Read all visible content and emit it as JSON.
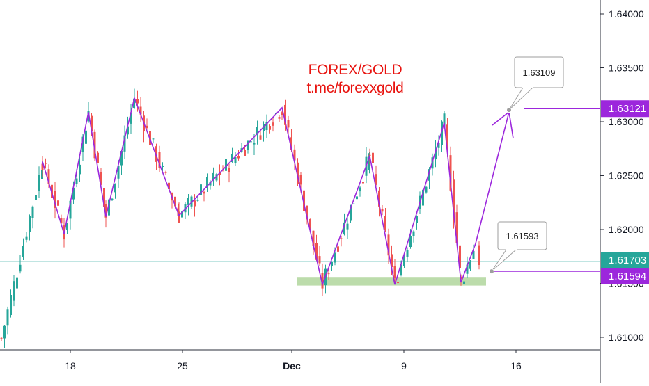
{
  "watermark": {
    "line1": "FOREX/GOLD",
    "line2": "t.me/forexxgold",
    "color": "#e8130f"
  },
  "colors": {
    "up": "#26a69a",
    "down": "#ef5350",
    "pattern": "#9c27dc",
    "last_price": "#26a69a",
    "support_zone": "#a5d08f",
    "price_line": "#80cbc4"
  },
  "chart_data": {
    "type": "candlestick",
    "symbol_hint": "price",
    "ylim": [
      1.6095,
      1.642
    ],
    "y_ticks": [
      "1.61000",
      "1.61500",
      "1.62000",
      "1.62500",
      "1.63000",
      "1.63500",
      "1.64000"
    ],
    "x_ticks": [
      {
        "label": "18",
        "bold": false
      },
      {
        "label": "25",
        "bold": false
      },
      {
        "label": "Dec",
        "bold": true
      },
      {
        "label": "9",
        "bold": false
      },
      {
        "label": "16",
        "bold": false
      }
    ],
    "last_price": "1.61703",
    "target_label": "1.63121",
    "second_label": "1.61594",
    "callouts": [
      {
        "label": "1.63109",
        "price": 1.63109
      },
      {
        "label": "1.61593",
        "price": 1.61593
      }
    ],
    "zigzag_pattern": [
      1.6263,
      1.6196,
      1.6309,
      1.6212,
      1.6322,
      1.6213,
      1.6313,
      1.6149,
      1.6268,
      1.6149,
      1.6299,
      1.6151,
      1.6187
    ],
    "projection_pattern": [
      1.6187,
      1.6309
    ],
    "support_zone": [
      1.6148,
      1.6156
    ],
    "candles_ohlc_sample_daily": [
      [
        1.6099,
        1.6108,
        1.6095,
        1.6103
      ],
      [
        1.6103,
        1.6168,
        1.6099,
        1.6165
      ],
      [
        1.6165,
        1.625,
        1.616,
        1.624
      ],
      [
        1.624,
        1.6262,
        1.6196,
        1.6205
      ],
      [
        1.6205,
        1.6309,
        1.62,
        1.629
      ],
      [
        1.629,
        1.6298,
        1.6212,
        1.6225
      ],
      [
        1.6225,
        1.6322,
        1.6218,
        1.631
      ],
      [
        1.631,
        1.6315,
        1.627,
        1.629
      ],
      [
        1.629,
        1.63,
        1.6213,
        1.623
      ],
      [
        1.623,
        1.627,
        1.6215,
        1.6255
      ],
      [
        1.6255,
        1.629,
        1.6225,
        1.6265
      ],
      [
        1.6265,
        1.6313,
        1.625,
        1.63
      ],
      [
        1.63,
        1.6305,
        1.6215,
        1.6225
      ],
      [
        1.6225,
        1.624,
        1.6149,
        1.617
      ],
      [
        1.617,
        1.6268,
        1.616,
        1.6255
      ],
      [
        1.6255,
        1.6265,
        1.6149,
        1.618
      ],
      [
        1.618,
        1.6299,
        1.617,
        1.629
      ],
      [
        1.629,
        1.63,
        1.6151,
        1.617
      ],
      [
        1.617,
        1.6187,
        1.615,
        1.617
      ]
    ]
  }
}
